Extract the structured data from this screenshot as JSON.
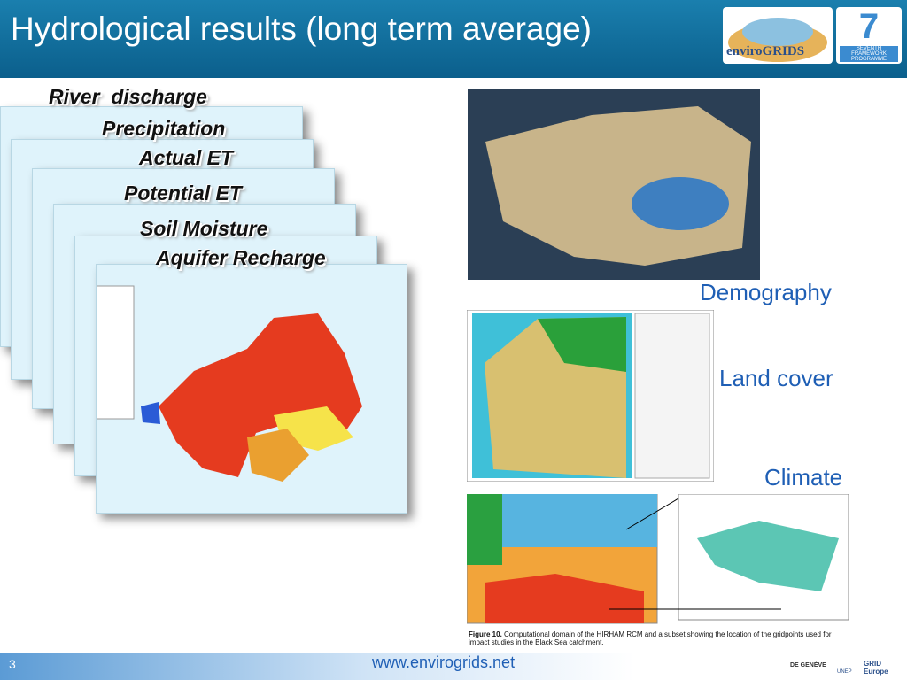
{
  "header": {
    "title": "Hydrological results (long term average)",
    "logo_name": "enviroGRIDS",
    "fp7_number": "7",
    "fp7_text": "SEVENTH FRAMEWORK PROGRAMME"
  },
  "layers": [
    "River  discharge",
    "Precipitation",
    "Actual ET",
    "Potential ET",
    "Soil Moisture",
    "Aquifer Recharge"
  ],
  "panels": [
    "Demography",
    "Land cover",
    "Climate"
  ],
  "figure_caption": {
    "label": "Figure 10.",
    "text": "Computational domain of the HIRHAM RCM and a subset showing the location of the gridpoints used for impact studies in the Black Sea catchment."
  },
  "footer": {
    "page": "3",
    "url": "www.envirogrids.net",
    "partners": [
      "DE GENÈVE",
      "UNEP",
      "GRID Europe"
    ]
  }
}
